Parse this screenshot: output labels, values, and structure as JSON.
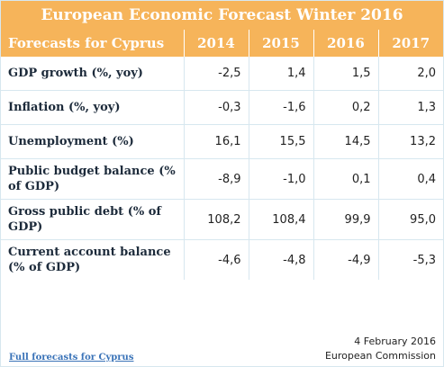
{
  "title": "European Economic Forecast Winter 2016",
  "table": {
    "header_label": "Forecasts for Cyprus",
    "years": [
      "2014",
      "2015",
      "2016",
      "2017"
    ],
    "rows": [
      {
        "label": "GDP growth (%, yoy)",
        "values": [
          "-2,5",
          "1,4",
          "1,5",
          "2,0"
        ]
      },
      {
        "label": "Inflation (%, yoy)",
        "values": [
          "-0,3",
          "-1,6",
          "0,2",
          "1,3"
        ]
      },
      {
        "label": "Unemployment (%)",
        "values": [
          "16,1",
          "15,5",
          "14,5",
          "13,2"
        ]
      },
      {
        "label": "Public budget balance (% of GDP)",
        "values": [
          "-8,9",
          "-1,0",
          "0,1",
          "0,4"
        ]
      },
      {
        "label": "Gross public debt (% of GDP)",
        "values": [
          "108,2",
          "108,4",
          "99,9",
          "95,0"
        ]
      },
      {
        "label": "Current account balance (% of GDP)",
        "values": [
          "-4,6",
          "-4,8",
          "-4,9",
          "-5,3"
        ]
      }
    ]
  },
  "footer": {
    "link_text": "Full forecasts for Cyprus",
    "date": "4 February 2016",
    "source": "European Commission"
  },
  "colors": {
    "header_bg": "#f6b45a",
    "header_text": "#ffffff",
    "grid_line": "#d7e7ef",
    "link": "#3a73b8"
  }
}
